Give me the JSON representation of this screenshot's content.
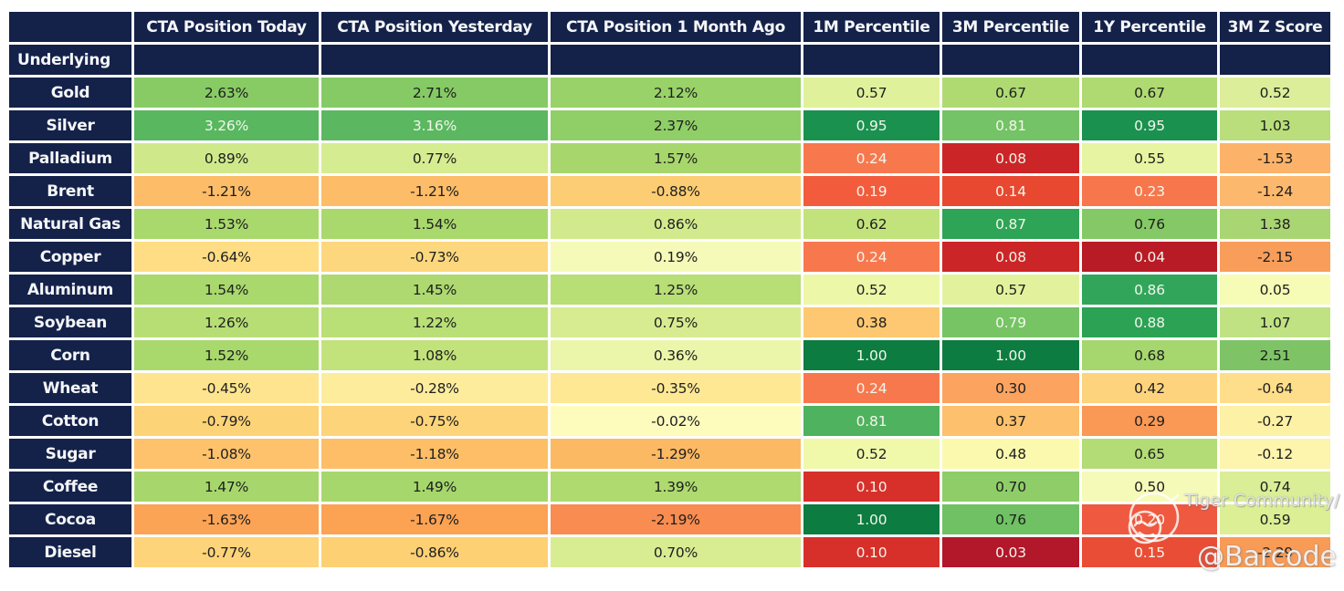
{
  "chart_data": {
    "type": "heatmap",
    "corner_label": "",
    "row_header_label": "Underlying",
    "columns": [
      "CTA Position Today",
      "CTA Position Yesterday",
      "CTA Position 1 Month Ago",
      "1M Percentile",
      "3M Percentile",
      "1Y Percentile",
      "3M Z Score"
    ],
    "rows": [
      {
        "label": "Gold",
        "cells": [
          {
            "v": "2.63%",
            "bg": "#88cb65",
            "fg": "dark"
          },
          {
            "v": "2.71%",
            "bg": "#85ca64",
            "fg": "dark"
          },
          {
            "v": "2.12%",
            "bg": "#99d268",
            "fg": "dark"
          },
          {
            "v": "0.57",
            "bg": "#e0f19c",
            "fg": "dark"
          },
          {
            "v": "0.67",
            "bg": "#afda72",
            "fg": "dark"
          },
          {
            "v": "0.67",
            "bg": "#afda72",
            "fg": "dark"
          },
          {
            "v": "0.52",
            "bg": "#dcee9a",
            "fg": "dark"
          }
        ]
      },
      {
        "label": "Silver",
        "cells": [
          {
            "v": "3.26%",
            "bg": "#58b75f",
            "fg": "light"
          },
          {
            "v": "3.16%",
            "bg": "#5bb860",
            "fg": "light"
          },
          {
            "v": "2.37%",
            "bg": "#90cf67",
            "fg": "dark"
          },
          {
            "v": "0.95",
            "bg": "#1b9150",
            "fg": "light"
          },
          {
            "v": "0.81",
            "bg": "#74c366",
            "fg": "light"
          },
          {
            "v": "0.95",
            "bg": "#1b9150",
            "fg": "light"
          },
          {
            "v": "1.03",
            "bg": "#b9de7b",
            "fg": "dark"
          }
        ]
      },
      {
        "label": "Palladium",
        "cells": [
          {
            "v": "0.89%",
            "bg": "#cfe98a",
            "fg": "dark"
          },
          {
            "v": "0.77%",
            "bg": "#d6ec90",
            "fg": "dark"
          },
          {
            "v": "1.57%",
            "bg": "#a7d76c",
            "fg": "dark"
          },
          {
            "v": "0.24",
            "bg": "#f8784e",
            "fg": "light"
          },
          {
            "v": "0.08",
            "bg": "#cc2527",
            "fg": "light"
          },
          {
            "v": "0.55",
            "bg": "#e7f4a1",
            "fg": "dark"
          },
          {
            "v": "-1.53",
            "bg": "#fcb369",
            "fg": "dark"
          }
        ]
      },
      {
        "label": "Brent",
        "cells": [
          {
            "v": "-1.21%",
            "bg": "#fdbc67",
            "fg": "dark"
          },
          {
            "v": "-1.21%",
            "bg": "#fdbc67",
            "fg": "dark"
          },
          {
            "v": "-0.88%",
            "bg": "#fdcd73",
            "fg": "dark"
          },
          {
            "v": "0.19",
            "bg": "#f25c3d",
            "fg": "light"
          },
          {
            "v": "0.14",
            "bg": "#e84830",
            "fg": "light"
          },
          {
            "v": "0.23",
            "bg": "#f7764c",
            "fg": "light"
          },
          {
            "v": "-1.24",
            "bg": "#fcb96d",
            "fg": "dark"
          }
        ]
      },
      {
        "label": "Natural Gas",
        "cells": [
          {
            "v": "1.53%",
            "bg": "#a9d86d",
            "fg": "dark"
          },
          {
            "v": "1.54%",
            "bg": "#a9d86d",
            "fg": "dark"
          },
          {
            "v": "0.86%",
            "bg": "#d2ea8c",
            "fg": "dark"
          },
          {
            "v": "0.62",
            "bg": "#c2e27c",
            "fg": "dark"
          },
          {
            "v": "0.87",
            "bg": "#2ea456",
            "fg": "light"
          },
          {
            "v": "0.76",
            "bg": "#85c966",
            "fg": "dark"
          },
          {
            "v": "1.38",
            "bg": "#a9d573",
            "fg": "dark"
          }
        ]
      },
      {
        "label": "Copper",
        "cells": [
          {
            "v": "-0.64%",
            "bg": "#fedd84",
            "fg": "dark"
          },
          {
            "v": "-0.73%",
            "bg": "#fdd77d",
            "fg": "dark"
          },
          {
            "v": "0.19%",
            "bg": "#f5fab8",
            "fg": "dark"
          },
          {
            "v": "0.24",
            "bg": "#f8784e",
            "fg": "light"
          },
          {
            "v": "0.08",
            "bg": "#cc2527",
            "fg": "light"
          },
          {
            "v": "0.04",
            "bg": "#b81b26",
            "fg": "light"
          },
          {
            "v": "-2.15",
            "bg": "#f89e5a",
            "fg": "dark"
          }
        ]
      },
      {
        "label": "Aluminum",
        "cells": [
          {
            "v": "1.54%",
            "bg": "#a9d86d",
            "fg": "dark"
          },
          {
            "v": "1.45%",
            "bg": "#add970",
            "fg": "dark"
          },
          {
            "v": "1.25%",
            "bg": "#b8de76",
            "fg": "dark"
          },
          {
            "v": "0.52",
            "bg": "#ecf7a7",
            "fg": "dark"
          },
          {
            "v": "0.57",
            "bg": "#e2f29c",
            "fg": "dark"
          },
          {
            "v": "0.86",
            "bg": "#31a65b",
            "fg": "light"
          },
          {
            "v": "0.05",
            "bg": "#f6fbb5",
            "fg": "dark"
          }
        ]
      },
      {
        "label": "Soybean",
        "cells": [
          {
            "v": "1.26%",
            "bg": "#b7de75",
            "fg": "dark"
          },
          {
            "v": "1.22%",
            "bg": "#b9df77",
            "fg": "dark"
          },
          {
            "v": "0.75%",
            "bg": "#d7ec91",
            "fg": "dark"
          },
          {
            "v": "0.38",
            "bg": "#fdc871",
            "fg": "dark"
          },
          {
            "v": "0.79",
            "bg": "#76c464",
            "fg": "light"
          },
          {
            "v": "0.88",
            "bg": "#2ba254",
            "fg": "light"
          },
          {
            "v": "1.07",
            "bg": "#c0e283",
            "fg": "dark"
          }
        ]
      },
      {
        "label": "Corn",
        "cells": [
          {
            "v": "1.52%",
            "bg": "#a9d86d",
            "fg": "dark"
          },
          {
            "v": "1.08%",
            "bg": "#c2e27b",
            "fg": "dark"
          },
          {
            "v": "0.36%",
            "bg": "#ebf6aa",
            "fg": "dark"
          },
          {
            "v": "1.00",
            "bg": "#0d7c41",
            "fg": "light"
          },
          {
            "v": "1.00",
            "bg": "#0d7c41",
            "fg": "light"
          },
          {
            "v": "0.68",
            "bg": "#a5d76e",
            "fg": "dark"
          },
          {
            "v": "2.51",
            "bg": "#7ec467",
            "fg": "dark"
          }
        ]
      },
      {
        "label": "Wheat",
        "cells": [
          {
            "v": "-0.45%",
            "bg": "#fee48e",
            "fg": "dark"
          },
          {
            "v": "-0.28%",
            "bg": "#feec9d",
            "fg": "dark"
          },
          {
            "v": "-0.35%",
            "bg": "#fee894",
            "fg": "dark"
          },
          {
            "v": "0.24",
            "bg": "#f8784e",
            "fg": "light"
          },
          {
            "v": "0.30",
            "bg": "#fca35f",
            "fg": "dark"
          },
          {
            "v": "0.42",
            "bg": "#fdd47d",
            "fg": "dark"
          },
          {
            "v": "-0.64",
            "bg": "#fede8a",
            "fg": "dark"
          }
        ]
      },
      {
        "label": "Cotton",
        "cells": [
          {
            "v": "-0.79%",
            "bg": "#fdd378",
            "fg": "dark"
          },
          {
            "v": "-0.75%",
            "bg": "#fdd479",
            "fg": "dark"
          },
          {
            "v": "-0.02%",
            "bg": "#fdfcbd",
            "fg": "dark"
          },
          {
            "v": "0.81",
            "bg": "#4fb25e",
            "fg": "light"
          },
          {
            "v": "0.37",
            "bg": "#fdc06c",
            "fg": "dark"
          },
          {
            "v": "0.29",
            "bg": "#fa9856",
            "fg": "dark"
          },
          {
            "v": "-0.27",
            "bg": "#fdf1a5",
            "fg": "dark"
          }
        ]
      },
      {
        "label": "Sugar",
        "cells": [
          {
            "v": "-1.08%",
            "bg": "#fdc26b",
            "fg": "dark"
          },
          {
            "v": "-1.18%",
            "bg": "#fdbe67",
            "fg": "dark"
          },
          {
            "v": "-1.29%",
            "bg": "#fcb963",
            "fg": "dark"
          },
          {
            "v": "0.52",
            "bg": "#f0f8a9",
            "fg": "dark"
          },
          {
            "v": "0.48",
            "bg": "#fbf9ae",
            "fg": "dark"
          },
          {
            "v": "0.65",
            "bg": "#b4dc76",
            "fg": "dark"
          },
          {
            "v": "-0.12",
            "bg": "#fdf4ad",
            "fg": "dark"
          }
        ]
      },
      {
        "label": "Coffee",
        "cells": [
          {
            "v": "1.47%",
            "bg": "#a7d76c",
            "fg": "dark"
          },
          {
            "v": "1.49%",
            "bg": "#a6d76c",
            "fg": "dark"
          },
          {
            "v": "1.39%",
            "bg": "#aeda70",
            "fg": "dark"
          },
          {
            "v": "0.10",
            "bg": "#d7302a",
            "fg": "light"
          },
          {
            "v": "0.70",
            "bg": "#8fcd68",
            "fg": "dark"
          },
          {
            "v": "0.50",
            "bg": "#f5fab8",
            "fg": "dark"
          },
          {
            "v": "0.74",
            "bg": "#d9ee97",
            "fg": "dark"
          }
        ]
      },
      {
        "label": "Cocoa",
        "cells": [
          {
            "v": "-1.63%",
            "bg": "#fba455",
            "fg": "dark"
          },
          {
            "v": "-1.67%",
            "bg": "#fba253",
            "fg": "dark"
          },
          {
            "v": "-2.19%",
            "bg": "#f98c50",
            "fg": "dark"
          },
          {
            "v": "1.00",
            "bg": "#0d7c41",
            "fg": "light"
          },
          {
            "v": "0.76",
            "bg": "#6fc164",
            "fg": "dark"
          },
          {
            "v": "0.20",
            "bg": "#ee5940",
            "fg": "light"
          },
          {
            "v": "0.59",
            "bg": "#dcef95",
            "fg": "dark"
          }
        ]
      },
      {
        "label": "Diesel",
        "cells": [
          {
            "v": "-0.77%",
            "bg": "#fdd479",
            "fg": "dark"
          },
          {
            "v": "-0.86%",
            "bg": "#fdd074",
            "fg": "dark"
          },
          {
            "v": "0.70%",
            "bg": "#d8ed92",
            "fg": "dark"
          },
          {
            "v": "0.10",
            "bg": "#d7302a",
            "fg": "light"
          },
          {
            "v": "0.03",
            "bg": "#b2172a",
            "fg": "light"
          },
          {
            "v": "0.15",
            "bg": "#ea4d35",
            "fg": "light"
          },
          {
            "v": "-2.29",
            "bg": "#f89b57",
            "fg": "dark"
          }
        ]
      }
    ],
    "layout": {
      "legend": "none",
      "grid_gap_color": "#ffffff",
      "header_bg": "#14224a"
    }
  },
  "watermark": {
    "community_label": "Tiger Community",
    "slash": "/",
    "handle": "@Barcode"
  }
}
